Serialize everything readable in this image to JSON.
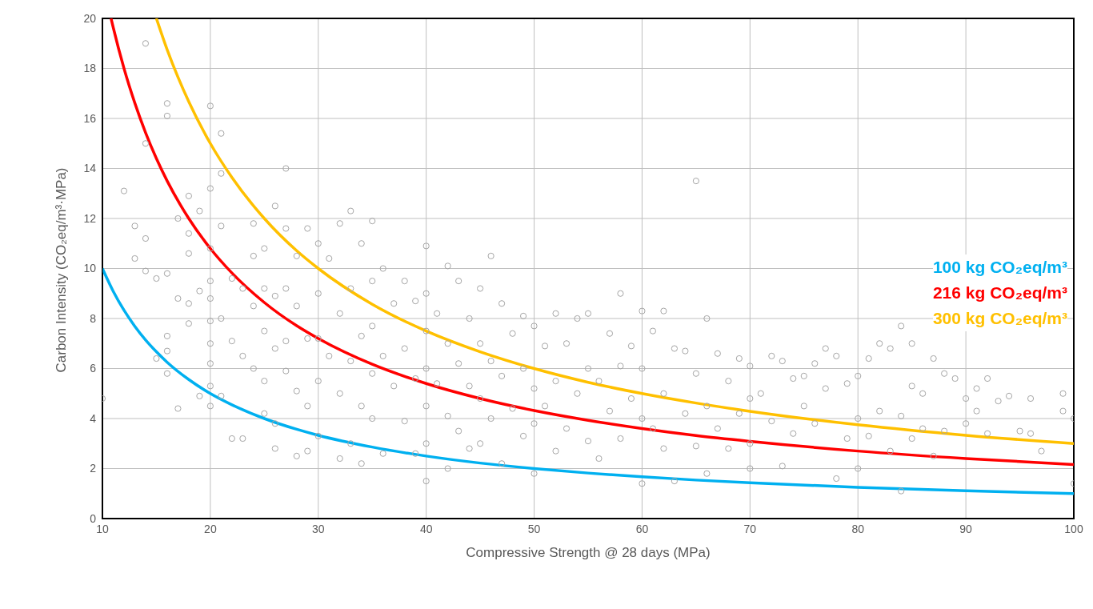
{
  "chart_data": {
    "type": "scatter",
    "xlabel": "Compressive Strength @ 28 days (MPa)",
    "ylabel": "Carbon Intensity (CO₂eq/m³·MPa)",
    "xlim": [
      10,
      100
    ],
    "ylim": [
      0,
      20
    ],
    "xticks": [
      10,
      20,
      30,
      40,
      50,
      60,
      70,
      80,
      90,
      100
    ],
    "yticks": [
      0,
      2,
      4,
      6,
      8,
      10,
      12,
      14,
      16,
      18,
      20
    ],
    "grid": true,
    "legend": "right",
    "series": [
      {
        "marker": "circle",
        "color": "#a6a6a6",
        "x": [
          10,
          12,
          13,
          13,
          14,
          14,
          14,
          14,
          15,
          15,
          16,
          16,
          16,
          16,
          16,
          16,
          17,
          17,
          17,
          18,
          18,
          18,
          18,
          18,
          19,
          19,
          19,
          20,
          20,
          20,
          20,
          20,
          20,
          20,
          20,
          20,
          20,
          21,
          21,
          21,
          21,
          21,
          22,
          22,
          22,
          23,
          23,
          23,
          24,
          24,
          24,
          24,
          25,
          25,
          25,
          25,
          25,
          26,
          26,
          26,
          26,
          26,
          27,
          27,
          27,
          27,
          27,
          28,
          28,
          28,
          28,
          29,
          29,
          29,
          29,
          30,
          30,
          30,
          30,
          30,
          31,
          31,
          32,
          32,
          32,
          32,
          33,
          33,
          33,
          33,
          34,
          34,
          34,
          34,
          35,
          35,
          35,
          35,
          35,
          36,
          36,
          36,
          37,
          37,
          38,
          38,
          38,
          39,
          39,
          39,
          40,
          40,
          40,
          40,
          40,
          40,
          40,
          41,
          41,
          42,
          42,
          42,
          42,
          43,
          43,
          43,
          44,
          44,
          44,
          45,
          45,
          45,
          45,
          46,
          46,
          46,
          47,
          47,
          47,
          48,
          48,
          49,
          49,
          49,
          50,
          50,
          50,
          50,
          51,
          51,
          52,
          52,
          52,
          53,
          53,
          54,
          54,
          55,
          55,
          55,
          56,
          56,
          57,
          57,
          58,
          58,
          58,
          59,
          59,
          60,
          60,
          60,
          60,
          61,
          61,
          62,
          62,
          62,
          63,
          63,
          64,
          64,
          65,
          65,
          65,
          66,
          66,
          66,
          67,
          67,
          68,
          68,
          69,
          69,
          70,
          70,
          70,
          70,
          71,
          72,
          72,
          73,
          73,
          74,
          74,
          75,
          75,
          76,
          76,
          77,
          77,
          78,
          78,
          79,
          79,
          80,
          80,
          80,
          81,
          81,
          82,
          82,
          83,
          83,
          84,
          84,
          84,
          85,
          85,
          85,
          86,
          86,
          87,
          87,
          88,
          88,
          89,
          90,
          90,
          91,
          91,
          92,
          92,
          93,
          94,
          95,
          96,
          96,
          97,
          99,
          99,
          100,
          100
        ],
        "values": [
          4.8,
          13.1,
          11.7,
          10.4,
          19,
          15,
          11.2,
          9.9,
          9.6,
          6.4,
          16.6,
          16.1,
          9.8,
          7.3,
          6.7,
          5.8,
          12,
          8.8,
          4.4,
          12.9,
          11.4,
          10.6,
          8.6,
          7.8,
          12.3,
          9.1,
          4.9,
          16.5,
          13.2,
          10.8,
          9.5,
          8.8,
          7.9,
          7,
          6.2,
          5.3,
          4.5,
          15.4,
          13.8,
          11.7,
          8,
          4.9,
          9.6,
          7.1,
          3.2,
          9.2,
          6.5,
          3.2,
          11.8,
          10.5,
          8.5,
          6,
          10.8,
          9.2,
          7.5,
          5.5,
          4.2,
          12.5,
          8.9,
          6.8,
          3.8,
          2.8,
          14,
          11.6,
          9.2,
          7.1,
          5.9,
          10.5,
          8.5,
          5.1,
          2.5,
          11.6,
          7.2,
          4.5,
          2.7,
          11,
          9,
          7.2,
          5.5,
          3.3,
          10.4,
          6.5,
          11.8,
          8.2,
          5,
          2.4,
          12.3,
          9.2,
          6.3,
          3,
          11,
          7.3,
          4.5,
          2.2,
          11.9,
          9.5,
          7.7,
          5.8,
          4,
          10,
          6.5,
          2.6,
          8.6,
          5.3,
          9.5,
          6.8,
          3.9,
          8.7,
          5.6,
          2.6,
          10.9,
          9,
          7.5,
          6,
          4.5,
          3,
          1.5,
          8.2,
          5.4,
          10.1,
          7,
          4.1,
          2,
          9.5,
          6.2,
          3.5,
          8,
          5.3,
          2.8,
          9.2,
          7,
          4.8,
          3,
          10.5,
          6.3,
          4,
          8.6,
          5.7,
          2.2,
          7.4,
          4.4,
          8.1,
          6,
          3.3,
          7.7,
          5.2,
          3.8,
          1.8,
          6.9,
          4.5,
          8.2,
          5.5,
          2.7,
          7,
          3.6,
          8,
          5,
          8.2,
          6,
          3.1,
          5.5,
          2.4,
          7.4,
          4.3,
          9,
          6.1,
          3.2,
          6.9,
          4.8,
          8.3,
          6,
          4,
          1.4,
          7.5,
          3.6,
          8.3,
          5,
          2.8,
          6.8,
          1.5,
          6.7,
          4.2,
          13.5,
          5.8,
          2.9,
          8,
          4.5,
          1.8,
          6.6,
          3.6,
          5.5,
          2.8,
          6.4,
          4.2,
          6.1,
          4.8,
          3,
          2,
          5,
          6.5,
          3.9,
          6.3,
          2.1,
          5.6,
          3.4,
          5.7,
          4.5,
          6.2,
          3.8,
          6.8,
          5.2,
          6.5,
          1.6,
          5.4,
          3.2,
          5.7,
          4,
          2,
          6.4,
          3.3,
          7,
          4.3,
          6.8,
          2.7,
          7.7,
          4.1,
          1.1,
          7,
          5.3,
          3.2,
          5,
          3.6,
          6.4,
          2.5,
          5.8,
          3.5,
          5.6,
          4.8,
          3.8,
          5.2,
          4.3,
          5.6,
          3.4,
          4.7,
          4.9,
          3.5,
          4.8,
          3.4,
          2.7,
          5,
          4.3,
          4,
          1.4
        ]
      },
      {
        "type": "line",
        "marker": "none",
        "name": "100 kg CO₂eq/m³",
        "color": "#00b0f0",
        "x": [
          10,
          11,
          12,
          13,
          14,
          15,
          16,
          18,
          20,
          22,
          25,
          28,
          30,
          35,
          40,
          45,
          50,
          55,
          60,
          65,
          70,
          80,
          90,
          100
        ],
        "values": [
          10,
          9.09,
          8.33,
          7.69,
          7.14,
          6.67,
          6.25,
          5.56,
          5,
          4.55,
          4,
          3.57,
          3.33,
          2.86,
          2.5,
          2.22,
          2,
          1.82,
          1.67,
          1.54,
          1.43,
          1.25,
          1.11,
          1
        ]
      },
      {
        "type": "line",
        "marker": "none",
        "name": "216 kg CO₂eq/m³",
        "color": "#ff0000",
        "x": [
          10.8,
          11,
          12,
          13,
          14,
          15,
          16,
          18,
          20,
          22,
          25,
          28,
          30,
          35,
          40,
          45,
          50,
          55,
          60,
          65,
          70,
          80,
          90,
          100
        ],
        "values": [
          20,
          19.64,
          18,
          16.62,
          15.43,
          14.4,
          13.5,
          12,
          10.8,
          9.82,
          8.64,
          7.71,
          7.2,
          6.17,
          5.4,
          4.8,
          4.32,
          3.93,
          3.6,
          3.32,
          3.09,
          2.7,
          2.4,
          2.16
        ]
      },
      {
        "type": "line",
        "marker": "none",
        "name": "300 kg CO₂eq/m³",
        "color": "#ffc000",
        "x": [
          15,
          16,
          17,
          18,
          20,
          22,
          25,
          28,
          30,
          35,
          40,
          45,
          50,
          55,
          60,
          65,
          70,
          80,
          90,
          100
        ],
        "values": [
          20,
          18.75,
          17.65,
          16.67,
          15,
          13.64,
          12,
          10.71,
          10,
          8.57,
          7.5,
          6.67,
          6,
          5.45,
          5,
          4.62,
          4.29,
          3.75,
          3.33,
          3
        ]
      }
    ]
  }
}
